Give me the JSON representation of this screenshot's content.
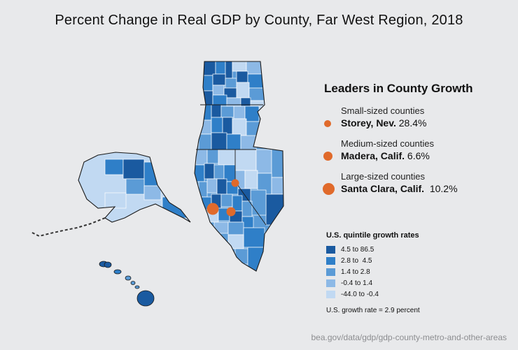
{
  "title": "Percent Change in Real GDP by County, Far West Region, 2018",
  "leaders": {
    "title": "Leaders in County Growth",
    "items": [
      {
        "category": "Small-sized counties",
        "name": "Storey, Nev.",
        "value": "28.4%"
      },
      {
        "category": "Medium-sized counties",
        "name": "Madera, Calif.",
        "value": "6.6%"
      },
      {
        "category": "Large-sized counties",
        "name": "Santa Clara, Calif.",
        "value": "10.2%"
      }
    ]
  },
  "legend": {
    "title": "U.S. quintile growth rates",
    "items": [
      {
        "label": "4.5 to 86.5",
        "color": "#1a5aa0"
      },
      {
        "label": "2.8 to  4.5",
        "color": "#2f7fc8"
      },
      {
        "label": "1.4 to 2.8",
        "color": "#5b9bd6"
      },
      {
        "label": "-0.4 to 1.4",
        "color": "#8db9e6"
      },
      {
        "label": "-44.0 to -0.4",
        "color": "#c1d9f2"
      }
    ],
    "note": "U.S. growth rate = 2.9 percent"
  },
  "colors": {
    "marker": "#e06a2b",
    "background": "#e8e9eb"
  },
  "source": "bea.gov/data/gdp/gdp-county-metro-and-other-areas"
}
